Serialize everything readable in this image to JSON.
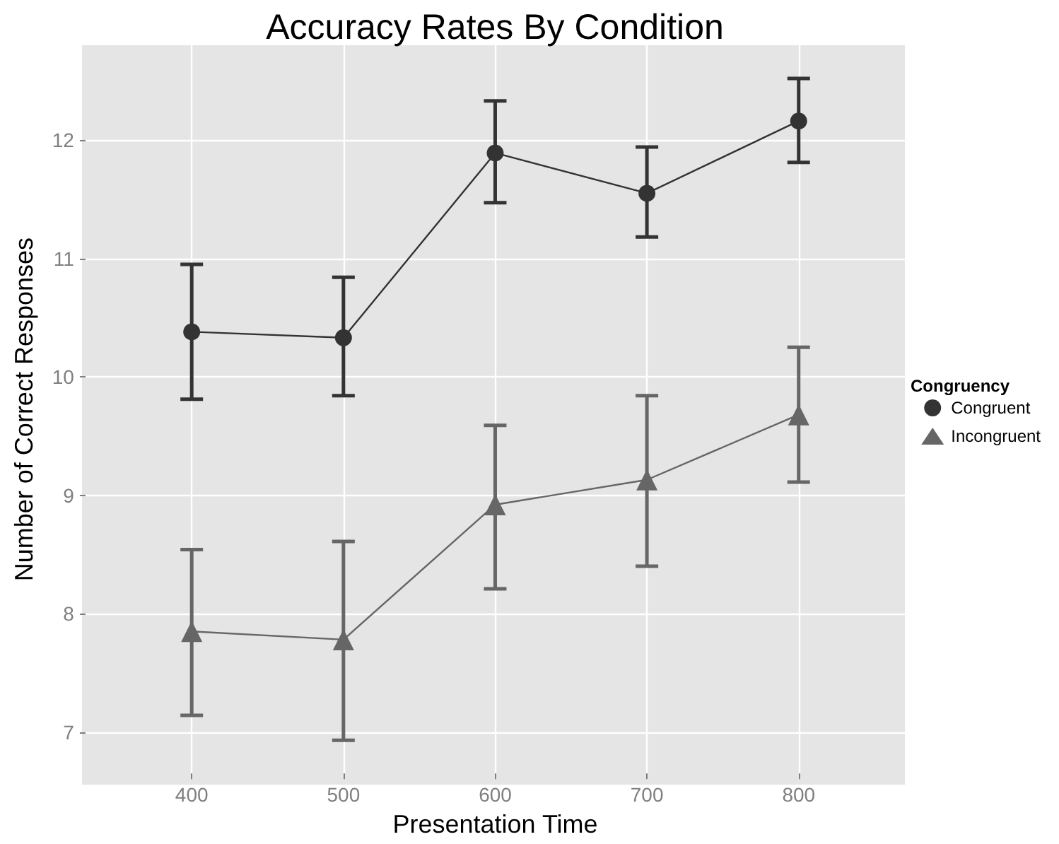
{
  "chart_data": {
    "type": "line",
    "title": "Accuracy Rates By Condition",
    "xlabel": "Presentation Time",
    "ylabel": "Number of Correct Responses",
    "legend_title": "Congruency",
    "x": [
      400,
      500,
      600,
      700,
      800
    ],
    "series": [
      {
        "name": "Congruent",
        "color": "#333333",
        "marker": "circle",
        "values": [
          10.38,
          10.33,
          11.89,
          11.55,
          12.16
        ],
        "errors": [
          [
            9.81,
            10.95
          ],
          [
            9.84,
            10.84
          ],
          [
            11.47,
            12.33
          ],
          [
            11.18,
            11.94
          ],
          [
            11.81,
            12.52
          ]
        ]
      },
      {
        "name": "Incongruent",
        "color": "#666666",
        "marker": "triangle",
        "values": [
          7.85,
          7.78,
          8.92,
          9.13,
          9.68
        ],
        "errors": [
          [
            7.14,
            8.54
          ],
          [
            6.93,
            8.61
          ],
          [
            8.21,
            9.59
          ],
          [
            8.4,
            9.84
          ],
          [
            9.11,
            10.25
          ]
        ]
      }
    ],
    "xlim": [
      330,
      870
    ],
    "xticks": [
      400,
      500,
      600,
      700,
      800
    ],
    "ylim": [
      6.65,
      12.8
    ],
    "yticks": [
      7,
      8,
      9,
      10,
      11,
      12
    ],
    "grid": true,
    "legend": "right",
    "line_style": "solid"
  }
}
